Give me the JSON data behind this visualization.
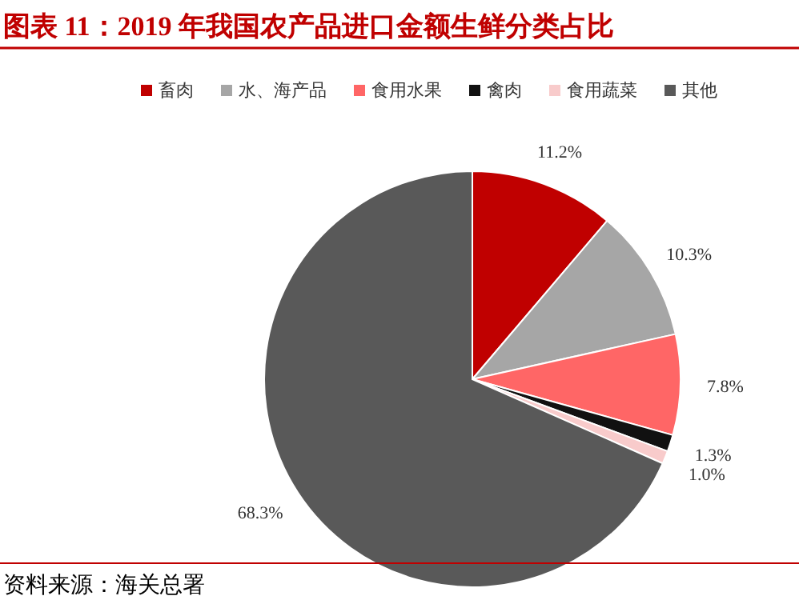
{
  "chart_data": {
    "type": "pie",
    "title": "图表 11：2019 年我国农产品进口金额生鲜分类占比",
    "categories": [
      "畜肉",
      "水、海产品",
      "食用水果",
      "禽肉",
      "食用蔬菜",
      "其他"
    ],
    "values": [
      11.2,
      10.3,
      7.8,
      1.3,
      1.0,
      68.3
    ],
    "colors": [
      "#c00000",
      "#a6a6a6",
      "#ff6666",
      "#111111",
      "#f8cbcb",
      "#595959"
    ],
    "value_labels": [
      "11.2%",
      "10.3%",
      "7.8%",
      "1.3%",
      "1.0%",
      "68.3%"
    ],
    "legend": "top",
    "annotations": [
      "资料来源：海关总署"
    ]
  }
}
